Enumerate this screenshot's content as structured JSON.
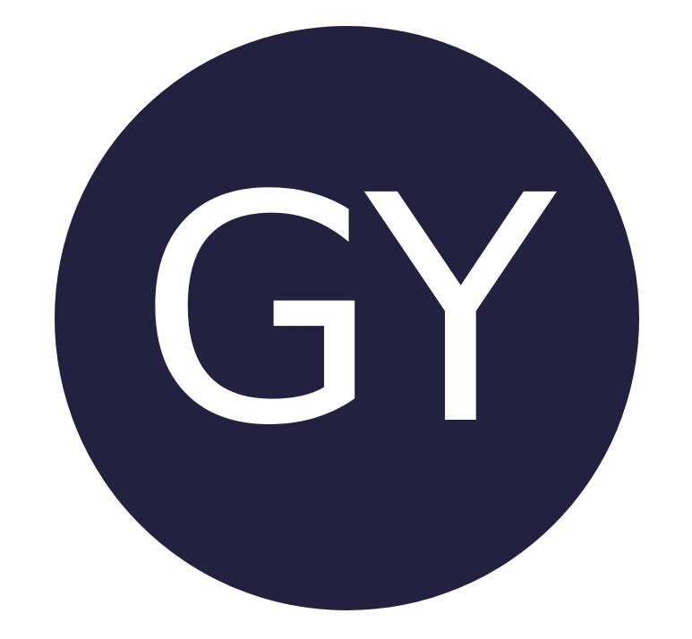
{
  "avatar": {
    "initials": "GY",
    "background_color": "#242040",
    "text_color": "#ffffff"
  }
}
